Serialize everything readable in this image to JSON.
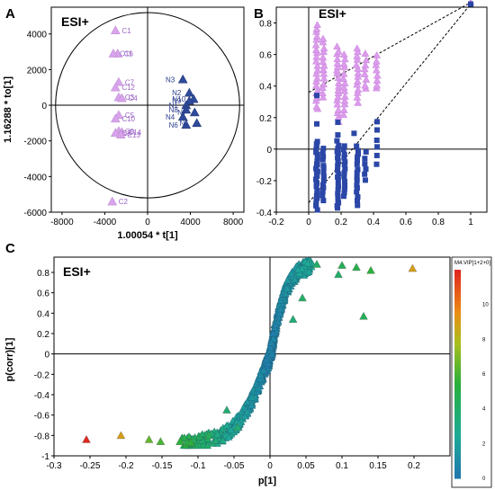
{
  "colors": {
    "c_group": "#d9a3ec",
    "n_group": "#2d4a9a",
    "permutation_r2": "#dc9bec",
    "permutation_q2": "#2a46a6"
  },
  "chart_data": [
    {
      "panel": "A",
      "type": "scatter",
      "label": "ESI+",
      "xlabel": "1.00054 * t[1]",
      "ylabel": "1.16288 * to[1]",
      "xlim": [
        -9000,
        9000
      ],
      "ylim": [
        -6000,
        5500
      ],
      "xticks": [
        -8000,
        -4000,
        0,
        4000,
        8000
      ],
      "yticks": [
        -6000,
        -4000,
        -2000,
        0,
        2000,
        4000
      ],
      "ellipse": {
        "rx": 8600,
        "ry": 5200
      },
      "points": [
        {
          "label": "C1",
          "x": -3000,
          "y": 4200,
          "group": "C"
        },
        {
          "label": "C6",
          "x": -2800,
          "y": 2900,
          "group": "C"
        },
        {
          "label": "C11",
          "x": -3200,
          "y": 2900,
          "group": "C"
        },
        {
          "label": "C7",
          "x": -2700,
          "y": 1300,
          "group": "C"
        },
        {
          "label": "C12",
          "x": -3000,
          "y": 1000,
          "group": "C"
        },
        {
          "label": "C3",
          "x": -2700,
          "y": 450,
          "group": "C"
        },
        {
          "label": "C4",
          "x": -2400,
          "y": 400,
          "group": "C"
        },
        {
          "label": "C5",
          "x": -2700,
          "y": -550,
          "group": "C"
        },
        {
          "label": "C10",
          "x": -3000,
          "y": -750,
          "group": "C"
        },
        {
          "label": "C9",
          "x": -2700,
          "y": -1450,
          "group": "C"
        },
        {
          "label": "C14",
          "x": -2400,
          "y": -1500,
          "group": "C"
        },
        {
          "label": "C8",
          "x": -3000,
          "y": -1550,
          "group": "C"
        },
        {
          "label": "C13",
          "x": -2500,
          "y": -1650,
          "group": "C"
        },
        {
          "label": "C2",
          "x": -3300,
          "y": -5400,
          "group": "C"
        },
        {
          "label": "N3",
          "x": 3300,
          "y": 1450,
          "group": "N"
        },
        {
          "label": "N2",
          "x": 3900,
          "y": 700,
          "group": "N"
        },
        {
          "label": "N10",
          "x": 4300,
          "y": 350,
          "group": "N"
        },
        {
          "label": "N9",
          "x": 3900,
          "y": 250,
          "group": "N"
        },
        {
          "label": "N1",
          "x": 3600,
          "y": 0,
          "group": "N"
        },
        {
          "label": "N8",
          "x": 3600,
          "y": -250,
          "group": "N"
        },
        {
          "label": "N7",
          "x": 4400,
          "y": -400,
          "group": "N"
        },
        {
          "label": "N4",
          "x": 3300,
          "y": -650,
          "group": "N"
        },
        {
          "label": "N6",
          "x": 3600,
          "y": -1100,
          "group": "N"
        },
        {
          "label": "N5",
          "x": 4600,
          "y": -1000,
          "group": "N"
        }
      ]
    },
    {
      "panel": "B",
      "type": "scatter",
      "label": "ESI+",
      "xlim": [
        -0.2,
        1.1
      ],
      "ylim": [
        -0.4,
        0.9
      ],
      "xticks": [
        "-0.2",
        "0",
        "0.2",
        "0.4",
        "0.6",
        "0.8",
        "1"
      ],
      "yticks": [
        "-0.4",
        "-0.2",
        "0",
        "0.2",
        "0.4",
        "0.6",
        "0.8"
      ],
      "series": [
        {
          "key": "R2",
          "marker": "triangle",
          "color": "#dc9bec",
          "columns": [
            {
              "x": 0.05,
              "ymin": 0.25,
              "ymax": 0.79,
              "n": 22
            },
            {
              "x": 0.09,
              "ymin": 0.33,
              "ymax": 0.7,
              "n": 14
            },
            {
              "x": 0.18,
              "ymin": 0.18,
              "ymax": 0.65,
              "n": 20
            },
            {
              "x": 0.22,
              "ymin": 0.22,
              "ymax": 0.6,
              "n": 14
            },
            {
              "x": 0.3,
              "ymin": 0.3,
              "ymax": 0.64,
              "n": 14
            },
            {
              "x": 0.35,
              "ymin": 0.38,
              "ymax": 0.6,
              "n": 8
            },
            {
              "x": 0.42,
              "ymin": 0.38,
              "ymax": 0.59,
              "n": 8
            }
          ],
          "regression": {
            "x0": 0,
            "y0": 0.36,
            "x1": 1,
            "y1": 0.93
          },
          "original": {
            "x": 1,
            "y": 0.93
          }
        },
        {
          "key": "Q2",
          "marker": "square",
          "color": "#2a46a6",
          "columns": [
            {
              "x": 0.05,
              "ymin": -0.38,
              "ymax": 0.05,
              "n": 26
            },
            {
              "x": 0.09,
              "ymin": -0.32,
              "ymax": 0.0,
              "n": 14
            },
            {
              "x": 0.18,
              "ymin": -0.38,
              "ymax": 0.05,
              "n": 22
            },
            {
              "x": 0.22,
              "ymin": -0.3,
              "ymax": 0.02,
              "n": 14
            },
            {
              "x": 0.3,
              "ymin": -0.35,
              "ymax": 0.02,
              "n": 16
            },
            {
              "x": 0.35,
              "ymin": -0.2,
              "ymax": -0.02,
              "n": 6
            },
            {
              "x": 0.42,
              "ymin": -0.1,
              "ymax": 0.17,
              "n": 6
            }
          ],
          "extras": [
            {
              "x": 0.05,
              "y": 0.34
            },
            {
              "x": 0.05,
              "y": 0.16
            },
            {
              "x": 0.18,
              "y": 0.17
            },
            {
              "x": 0.18,
              "y": 0.09
            },
            {
              "x": 0.28,
              "y": 0.1
            }
          ],
          "regression": {
            "x0": 0,
            "y0": -0.34,
            "x1": 1,
            "y1": 0.92
          },
          "original": {
            "x": 1,
            "y": 0.92
          }
        }
      ]
    },
    {
      "panel": "C",
      "type": "scatter",
      "label": "ESI+",
      "xlabel": "p[1]",
      "ylabel": "p(corr)[1]",
      "xlim": [
        -0.3,
        0.25
      ],
      "ylim": [
        -1.0,
        0.95
      ],
      "xticks": [
        "-0.3",
        "-0.25",
        "-0.2",
        "-0.15",
        "-0.1",
        "-0.05",
        "0",
        "0.05",
        "0.1",
        "0.15",
        "0.2"
      ],
      "yticks": [
        "-1",
        "-0.8",
        "-0.6",
        "-0.4",
        "-0.2",
        "0",
        "0.2",
        "0.4",
        "0.6",
        "0.8"
      ],
      "colorbar": {
        "title": "M4.VIP[1+2+0]",
        "ticks": [
          "0",
          "2",
          "4",
          "6",
          "8",
          "10"
        ],
        "vmin": 0,
        "vmax": 12
      },
      "highlighted_points": [
        {
          "x": -0.255,
          "y": -0.84,
          "vip": 12
        },
        {
          "x": -0.207,
          "y": -0.8,
          "vip": 9
        },
        {
          "x": 0.198,
          "y": 0.84,
          "vip": 9
        },
        {
          "x": -0.168,
          "y": -0.84,
          "vip": 6.5
        },
        {
          "x": -0.152,
          "y": -0.86,
          "vip": 6
        },
        {
          "x": -0.125,
          "y": -0.86,
          "vip": 5.5
        },
        {
          "x": -0.115,
          "y": -0.87,
          "vip": 5
        },
        {
          "x": -0.11,
          "y": -0.87,
          "vip": 5.5
        },
        {
          "x": 0.14,
          "y": 0.82,
          "vip": 5.5
        },
        {
          "x": 0.12,
          "y": 0.85,
          "vip": 5
        },
        {
          "x": 0.1,
          "y": 0.87,
          "vip": 4.5
        },
        {
          "x": 0.065,
          "y": 0.88,
          "vip": 4
        },
        {
          "x": -0.085,
          "y": -0.8,
          "vip": 4.5
        },
        {
          "x": 0.095,
          "y": 0.78,
          "vip": 4
        },
        {
          "x": 0.045,
          "y": 0.55,
          "vip": 4
        },
        {
          "x": 0.032,
          "y": 0.34,
          "vip": 3.5
        },
        {
          "x": -0.06,
          "y": -0.55,
          "vip": 3.5
        },
        {
          "x": -0.045,
          "y": -0.72,
          "vip": 3.5
        },
        {
          "x": 0.13,
          "y": 0.37,
          "vip": 4.5
        }
      ]
    }
  ]
}
